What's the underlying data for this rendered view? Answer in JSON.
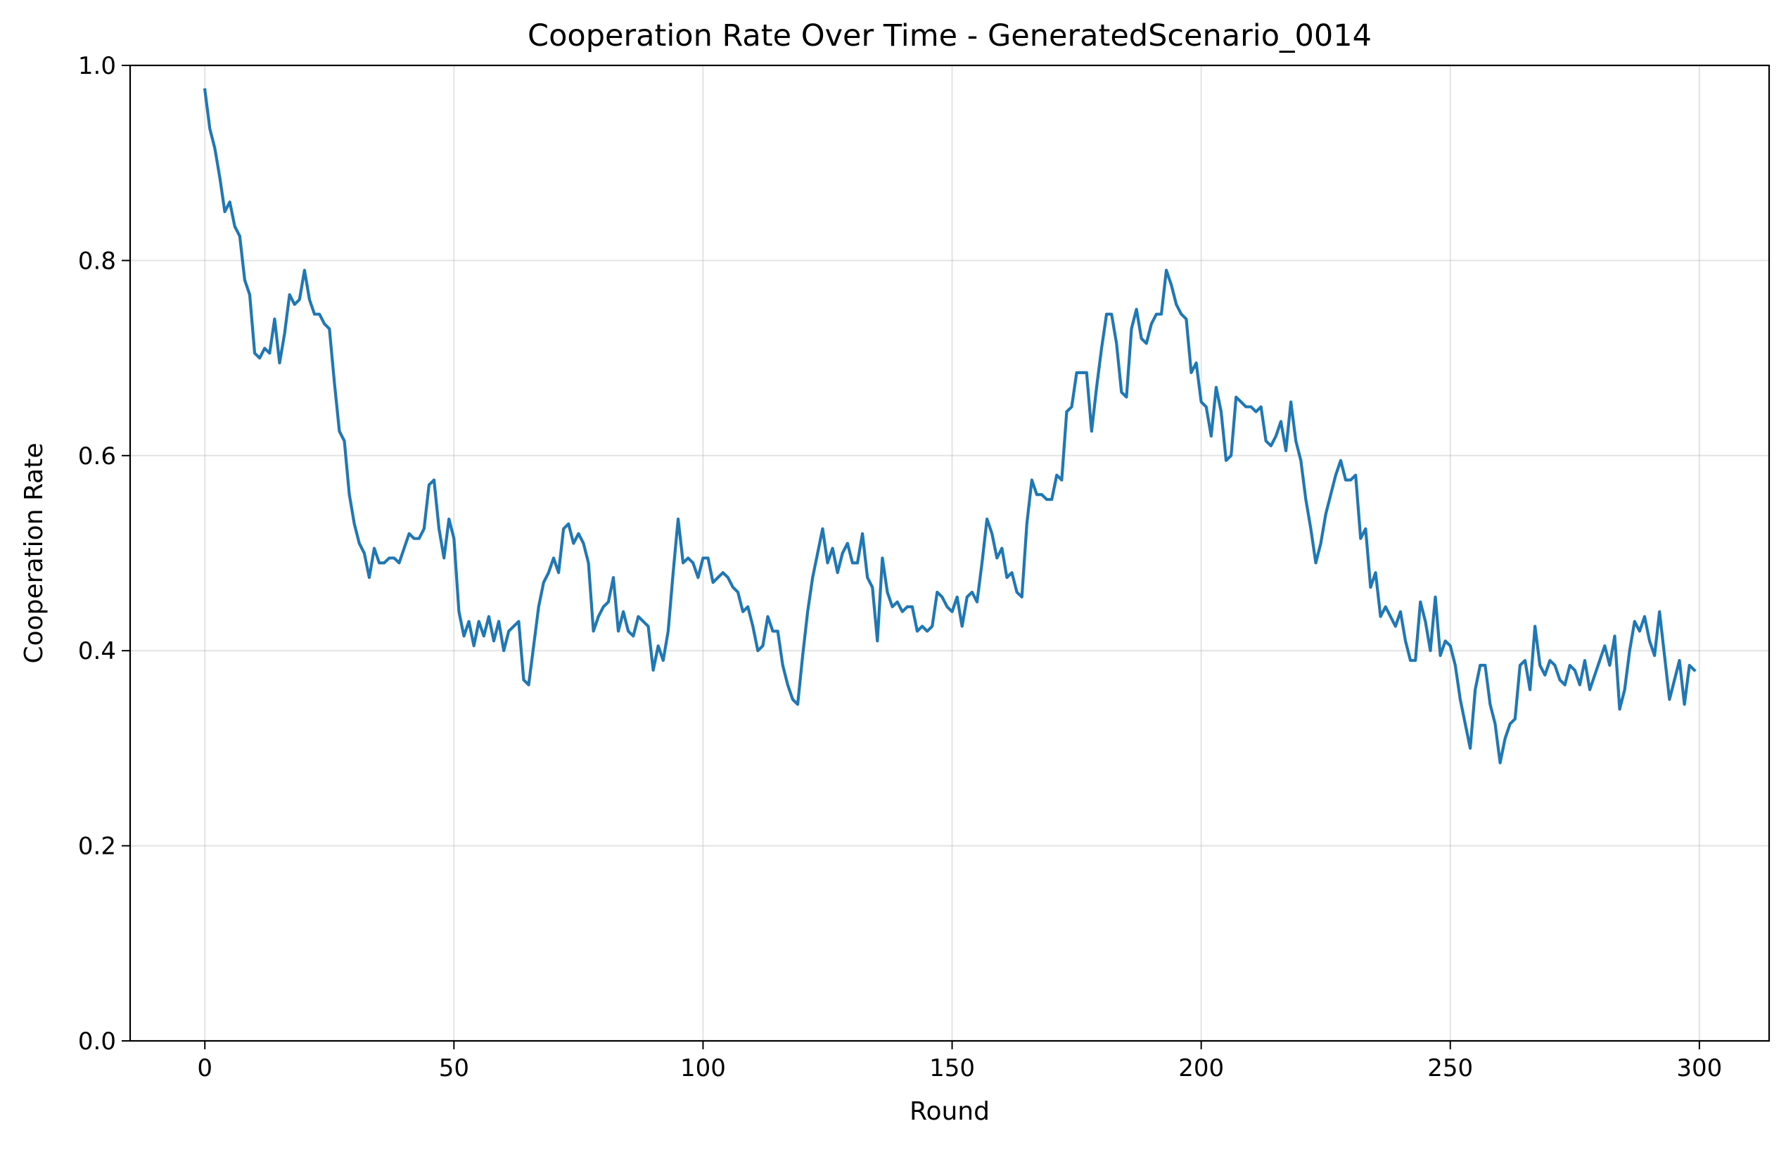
{
  "chart_data": {
    "type": "line",
    "title": "Cooperation Rate Over Time - GeneratedScenario_0014",
    "xlabel": "Round",
    "ylabel": "Cooperation Rate",
    "xlim": [
      -15,
      314
    ],
    "ylim": [
      0.0,
      1.0
    ],
    "xticks": [
      0,
      50,
      100,
      150,
      200,
      250,
      300
    ],
    "xtick_labels": [
      "0",
      "50",
      "100",
      "150",
      "200",
      "250",
      "300"
    ],
    "yticks": [
      0.0,
      0.2,
      0.4,
      0.6,
      0.8,
      1.0
    ],
    "ytick_labels": [
      "0.0",
      "0.2",
      "0.4",
      "0.6",
      "0.8",
      "1.0"
    ],
    "grid": true,
    "line_color": "#1f77b4",
    "series": [
      {
        "x": [
          0,
          1,
          2,
          3,
          4,
          5,
          6,
          7,
          8,
          9,
          10,
          11,
          12,
          13,
          14,
          15,
          16,
          17,
          18,
          19,
          20,
          21,
          22,
          23,
          24,
          25,
          26,
          27,
          28,
          29,
          30,
          31,
          32,
          33,
          34,
          35,
          36,
          37,
          38,
          39,
          40,
          41,
          42,
          43,
          44,
          45,
          46,
          47,
          48,
          49,
          50,
          51,
          52,
          53,
          54,
          55,
          56,
          57,
          58,
          59,
          60,
          61,
          62,
          63,
          64,
          65,
          66,
          67,
          68,
          69,
          70,
          71,
          72,
          73,
          74,
          75,
          76,
          77,
          78,
          79,
          80,
          81,
          82,
          83,
          84,
          85,
          86,
          87,
          88,
          89,
          90,
          91,
          92,
          93,
          94,
          95,
          96,
          97,
          98,
          99,
          100,
          101,
          102,
          103,
          104,
          105,
          106,
          107,
          108,
          109,
          110,
          111,
          112,
          113,
          114,
          115,
          116,
          117,
          118,
          119,
          120,
          121,
          122,
          123,
          124,
          125,
          126,
          127,
          128,
          129,
          130,
          131,
          132,
          133,
          134,
          135,
          136,
          137,
          138,
          139,
          140,
          141,
          142,
          143,
          144,
          145,
          146,
          147,
          148,
          149,
          150,
          151,
          152,
          153,
          154,
          155,
          156,
          157,
          158,
          159,
          160,
          161,
          162,
          163,
          164,
          165,
          166,
          167,
          168,
          169,
          170,
          171,
          172,
          173,
          174,
          175,
          176,
          177,
          178,
          179,
          180,
          181,
          182,
          183,
          184,
          185,
          186,
          187,
          188,
          189,
          190,
          191,
          192,
          193,
          194,
          195,
          196,
          197,
          198,
          199,
          200,
          201,
          202,
          203,
          204,
          205,
          206,
          207,
          208,
          209,
          210,
          211,
          212,
          213,
          214,
          215,
          216,
          217,
          218,
          219,
          220,
          221,
          222,
          223,
          224,
          225,
          226,
          227,
          228,
          229,
          230,
          231,
          232,
          233,
          234,
          235,
          236,
          237,
          238,
          239,
          240,
          241,
          242,
          243,
          244,
          245,
          246,
          247,
          248,
          249,
          250,
          251,
          252,
          253,
          254,
          255,
          256,
          257,
          258,
          259,
          260,
          261,
          262,
          263,
          264,
          265,
          266,
          267,
          268,
          269,
          270,
          271,
          272,
          273,
          274,
          275,
          276,
          277,
          278,
          279,
          280,
          281,
          282,
          283,
          284,
          285,
          286,
          287,
          288,
          289,
          290,
          291,
          292,
          293,
          294,
          295,
          296,
          297,
          298,
          299
        ],
        "y": [
          0.975,
          0.935,
          0.915,
          0.885,
          0.85,
          0.86,
          0.835,
          0.825,
          0.78,
          0.765,
          0.705,
          0.7,
          0.71,
          0.705,
          0.74,
          0.695,
          0.725,
          0.765,
          0.755,
          0.76,
          0.79,
          0.76,
          0.745,
          0.745,
          0.735,
          0.73,
          0.675,
          0.625,
          0.615,
          0.56,
          0.53,
          0.51,
          0.5,
          0.475,
          0.505,
          0.49,
          0.49,
          0.495,
          0.495,
          0.49,
          0.505,
          0.52,
          0.515,
          0.515,
          0.525,
          0.57,
          0.575,
          0.525,
          0.495,
          0.535,
          0.515,
          0.44,
          0.415,
          0.43,
          0.405,
          0.43,
          0.415,
          0.435,
          0.41,
          0.43,
          0.4,
          0.42,
          0.425,
          0.43,
          0.37,
          0.365,
          0.405,
          0.445,
          0.47,
          0.48,
          0.495,
          0.48,
          0.525,
          0.53,
          0.51,
          0.52,
          0.51,
          0.49,
          0.42,
          0.435,
          0.445,
          0.45,
          0.475,
          0.42,
          0.44,
          0.42,
          0.415,
          0.435,
          0.43,
          0.425,
          0.38,
          0.405,
          0.39,
          0.42,
          0.48,
          0.535,
          0.49,
          0.495,
          0.49,
          0.475,
          0.495,
          0.495,
          0.47,
          0.475,
          0.48,
          0.475,
          0.465,
          0.46,
          0.44,
          0.445,
          0.425,
          0.4,
          0.405,
          0.435,
          0.42,
          0.42,
          0.385,
          0.365,
          0.35,
          0.345,
          0.395,
          0.44,
          0.475,
          0.5,
          0.525,
          0.49,
          0.505,
          0.48,
          0.5,
          0.51,
          0.49,
          0.49,
          0.52,
          0.475,
          0.465,
          0.41,
          0.495,
          0.46,
          0.445,
          0.45,
          0.44,
          0.445,
          0.445,
          0.42,
          0.425,
          0.42,
          0.425,
          0.46,
          0.455,
          0.445,
          0.44,
          0.455,
          0.425,
          0.455,
          0.46,
          0.45,
          0.49,
          0.535,
          0.52,
          0.495,
          0.505,
          0.475,
          0.48,
          0.46,
          0.455,
          0.53,
          0.575,
          0.56,
          0.56,
          0.555,
          0.555,
          0.58,
          0.575,
          0.645,
          0.65,
          0.685,
          0.685,
          0.685,
          0.625,
          0.67,
          0.71,
          0.745,
          0.745,
          0.715,
          0.665,
          0.66,
          0.73,
          0.75,
          0.72,
          0.715,
          0.735,
          0.745,
          0.745,
          0.79,
          0.775,
          0.755,
          0.745,
          0.74,
          0.685,
          0.695,
          0.655,
          0.65,
          0.62,
          0.67,
          0.645,
          0.595,
          0.6,
          0.66,
          0.655,
          0.65,
          0.65,
          0.645,
          0.65,
          0.615,
          0.61,
          0.62,
          0.635,
          0.605,
          0.655,
          0.615,
          0.595,
          0.555,
          0.525,
          0.49,
          0.51,
          0.54,
          0.56,
          0.58,
          0.595,
          0.575,
          0.575,
          0.58,
          0.515,
          0.525,
          0.465,
          0.48,
          0.435,
          0.445,
          0.435,
          0.425,
          0.44,
          0.41,
          0.39,
          0.39,
          0.45,
          0.43,
          0.4,
          0.455,
          0.395,
          0.41,
          0.405,
          0.385,
          0.35,
          0.325,
          0.3,
          0.36,
          0.385,
          0.385,
          0.345,
          0.325,
          0.285,
          0.31,
          0.325,
          0.33,
          0.385,
          0.39,
          0.36,
          0.425,
          0.385,
          0.375,
          0.39,
          0.385,
          0.37,
          0.365,
          0.385,
          0.38,
          0.365,
          0.39,
          0.36,
          0.375,
          0.39,
          0.405,
          0.385,
          0.415,
          0.34,
          0.36,
          0.4,
          0.43,
          0.42,
          0.435,
          0.41,
          0.395,
          0.44,
          0.395,
          0.35,
          0.37,
          0.39,
          0.345,
          0.385,
          0.38
        ]
      }
    ]
  }
}
